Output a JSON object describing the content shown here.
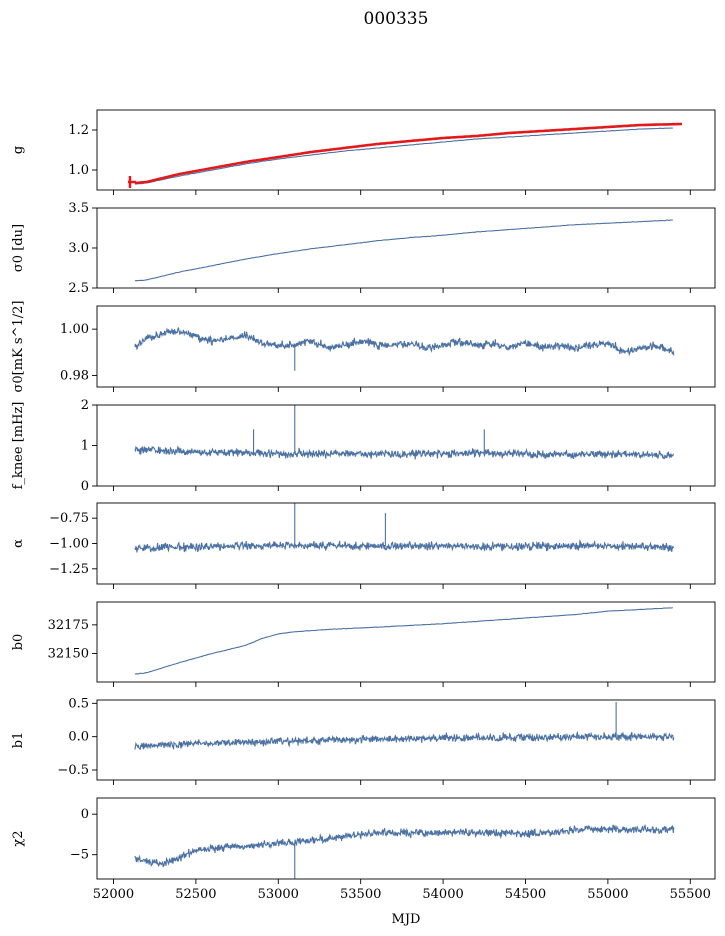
{
  "figure": {
    "title": "000335",
    "xlabel": "MJD"
  },
  "colors": {
    "series": "#4c72a4",
    "fit": "#e31a1c",
    "axes": "#000000"
  },
  "chart_data": [
    {
      "type": "line",
      "ylabel": "g",
      "xlim": [
        51900,
        55650
      ],
      "ylim": [
        0.9,
        1.3
      ],
      "yticks": [
        1.0,
        1.2
      ],
      "ytick_labels": [
        "1.0",
        "1.2"
      ],
      "grid": false,
      "series": [
        {
          "role": "data",
          "style": "smooth",
          "x": [
            52130,
            52200,
            52400,
            52600,
            52800,
            53000,
            53200,
            53400,
            53600,
            53800,
            54000,
            54200,
            54400,
            54600,
            54800,
            55000,
            55200,
            55400
          ],
          "values": [
            0.93,
            0.935,
            0.97,
            1.0,
            1.03,
            1.055,
            1.075,
            1.095,
            1.11,
            1.125,
            1.14,
            1.155,
            1.165,
            1.175,
            1.185,
            1.195,
            1.205,
            1.21
          ]
        },
        {
          "role": "fit",
          "style": "smooth",
          "x": [
            52130,
            52200,
            52400,
            52600,
            52800,
            53000,
            53200,
            53400,
            53600,
            53800,
            54000,
            54200,
            54400,
            54600,
            54800,
            55000,
            55200,
            55450
          ],
          "values": [
            0.935,
            0.94,
            0.98,
            1.01,
            1.04,
            1.065,
            1.09,
            1.11,
            1.13,
            1.145,
            1.16,
            1.17,
            1.185,
            1.195,
            1.205,
            1.215,
            1.225,
            1.23
          ]
        }
      ],
      "annotations": [
        {
          "type": "errorbar",
          "x": 52100,
          "y": 0.94,
          "dy": 0.03
        }
      ]
    },
    {
      "type": "line",
      "ylabel": "σ0 [du]",
      "xlim": [
        51900,
        55650
      ],
      "ylim": [
        2.5,
        3.5
      ],
      "yticks": [
        2.5,
        3.0,
        3.5
      ],
      "ytick_labels": [
        "2.5",
        "3.0",
        "3.5"
      ],
      "grid": false,
      "series": [
        {
          "style": "smooth",
          "x": [
            52130,
            52200,
            52400,
            52600,
            52800,
            53000,
            53200,
            53400,
            53600,
            53800,
            54000,
            54200,
            54400,
            54600,
            54800,
            55000,
            55200,
            55400
          ],
          "values": [
            2.59,
            2.6,
            2.7,
            2.78,
            2.86,
            2.93,
            2.99,
            3.04,
            3.09,
            3.13,
            3.16,
            3.2,
            3.23,
            3.26,
            3.29,
            3.31,
            3.33,
            3.35
          ]
        }
      ]
    },
    {
      "type": "line",
      "ylabel": "σ0[mK s^1/2]",
      "xlim": [
        51900,
        55650
      ],
      "ylim": [
        0.975,
        1.01
      ],
      "yticks": [
        0.98,
        1.0
      ],
      "ytick_labels": [
        "0.98",
        "1.00"
      ],
      "grid": false,
      "series": [
        {
          "style": "noisy",
          "x": [
            52130,
            52200,
            52300,
            52400,
            52500,
            52600,
            52700,
            52800,
            52900,
            53000,
            53100,
            53200,
            53300,
            53400,
            53500,
            53600,
            53700,
            53800,
            53900,
            54000,
            54100,
            54200,
            54300,
            54400,
            54500,
            54600,
            54700,
            54800,
            54900,
            55000,
            55100,
            55200,
            55300,
            55400
          ],
          "values": [
            0.992,
            0.996,
            0.998,
            0.999,
            0.997,
            0.995,
            0.996,
            0.997,
            0.994,
            0.993,
            0.993,
            0.995,
            0.992,
            0.993,
            0.995,
            0.993,
            0.993,
            0.994,
            0.992,
            0.993,
            0.995,
            0.993,
            0.994,
            0.992,
            0.994,
            0.992,
            0.993,
            0.992,
            0.993,
            0.994,
            0.99,
            0.992,
            0.993,
            0.99
          ]
        }
      ],
      "spikes": [
        {
          "x": 53100,
          "to": 0.982
        }
      ]
    },
    {
      "type": "line",
      "ylabel": "f_knee [mHz]",
      "xlim": [
        51900,
        55650
      ],
      "ylim": [
        0,
        2
      ],
      "yticks": [
        0,
        1,
        2
      ],
      "ytick_labels": [
        "0",
        "1",
        "2"
      ],
      "grid": false,
      "series": [
        {
          "style": "noisy",
          "x": [
            52130,
            52400,
            52700,
            53000,
            53300,
            53600,
            53900,
            54200,
            54500,
            54800,
            55100,
            55400
          ],
          "values": [
            0.9,
            0.85,
            0.82,
            0.8,
            0.8,
            0.78,
            0.78,
            0.82,
            0.78,
            0.78,
            0.78,
            0.75
          ]
        }
      ],
      "spikes": [
        {
          "x": 53100,
          "to": 2.0
        },
        {
          "x": 52850,
          "to": 1.4
        },
        {
          "x": 54250,
          "to": 1.4
        }
      ]
    },
    {
      "type": "line",
      "ylabel": "α",
      "xlim": [
        51900,
        55650
      ],
      "ylim": [
        -1.4,
        -0.6
      ],
      "yticks": [
        -1.25,
        -1.0,
        -0.75
      ],
      "ytick_labels": [
        "−1.25",
        "−1.00",
        "−0.75"
      ],
      "grid": false,
      "series": [
        {
          "style": "noisy",
          "x": [
            52130,
            52500,
            52900,
            53300,
            53700,
            54100,
            54500,
            54900,
            55400
          ],
          "values": [
            -1.05,
            -1.03,
            -1.02,
            -1.02,
            -1.03,
            -1.03,
            -1.03,
            -1.02,
            -1.04
          ]
        }
      ],
      "spikes": [
        {
          "x": 53100,
          "to": -0.6
        },
        {
          "x": 53650,
          "to": -0.7
        }
      ]
    },
    {
      "type": "line",
      "ylabel": "b0",
      "xlim": [
        51900,
        55650
      ],
      "ylim": [
        32125,
        32195
      ],
      "yticks": [
        32150,
        32175
      ],
      "ytick_labels": [
        "32150",
        "32175"
      ],
      "grid": false,
      "series": [
        {
          "style": "smooth",
          "x": [
            52130,
            52200,
            52400,
            52600,
            52800,
            52900,
            53000,
            53100,
            53300,
            53600,
            54000,
            54400,
            54800,
            55000,
            55400
          ],
          "values": [
            32132,
            32133,
            32142,
            32150,
            32157,
            32163,
            32167,
            32169,
            32171,
            32173,
            32176,
            32180,
            32184,
            32187,
            32190
          ]
        }
      ]
    },
    {
      "type": "line",
      "ylabel": "b1",
      "xlim": [
        51900,
        55650
      ],
      "ylim": [
        -0.65,
        0.55
      ],
      "yticks": [
        -0.5,
        0.0,
        0.5
      ],
      "ytick_labels": [
        "−0.5",
        "0.0",
        "0.5"
      ],
      "grid": false,
      "series": [
        {
          "style": "noisy",
          "x": [
            52130,
            52500,
            52900,
            53300,
            53700,
            54100,
            54500,
            54900,
            55400
          ],
          "values": [
            -0.15,
            -0.1,
            -0.08,
            -0.05,
            -0.03,
            -0.02,
            -0.01,
            0.0,
            0.0
          ]
        }
      ],
      "spikes": [
        {
          "x": 55050,
          "to": 0.52
        }
      ]
    },
    {
      "type": "line",
      "ylabel": "χ2",
      "xlim": [
        51900,
        55650
      ],
      "ylim": [
        -8,
        2
      ],
      "yticks": [
        -5,
        0
      ],
      "ytick_labels": [
        "−5",
        "0"
      ],
      "grid": false,
      "series": [
        {
          "style": "noisy",
          "x": [
            52130,
            52300,
            52500,
            52700,
            52900,
            53100,
            53300,
            53500,
            53700,
            53900,
            54100,
            54300,
            54500,
            54700,
            54900,
            55100,
            55400
          ],
          "values": [
            -5.5,
            -6.2,
            -4.5,
            -4.0,
            -3.8,
            -3.5,
            -3.0,
            -2.5,
            -2.3,
            -2.4,
            -2.2,
            -2.3,
            -2.4,
            -2.2,
            -1.8,
            -1.9,
            -2.0
          ]
        }
      ],
      "spikes": [
        {
          "x": 53100,
          "to": -8
        }
      ]
    }
  ],
  "xaxis": {
    "ticks": [
      52000,
      52500,
      53000,
      53500,
      54000,
      54500,
      55000,
      55500
    ],
    "tick_labels": [
      "52000",
      "52500",
      "53000",
      "53500",
      "54000",
      "54500",
      "55000",
      "55500"
    ]
  }
}
